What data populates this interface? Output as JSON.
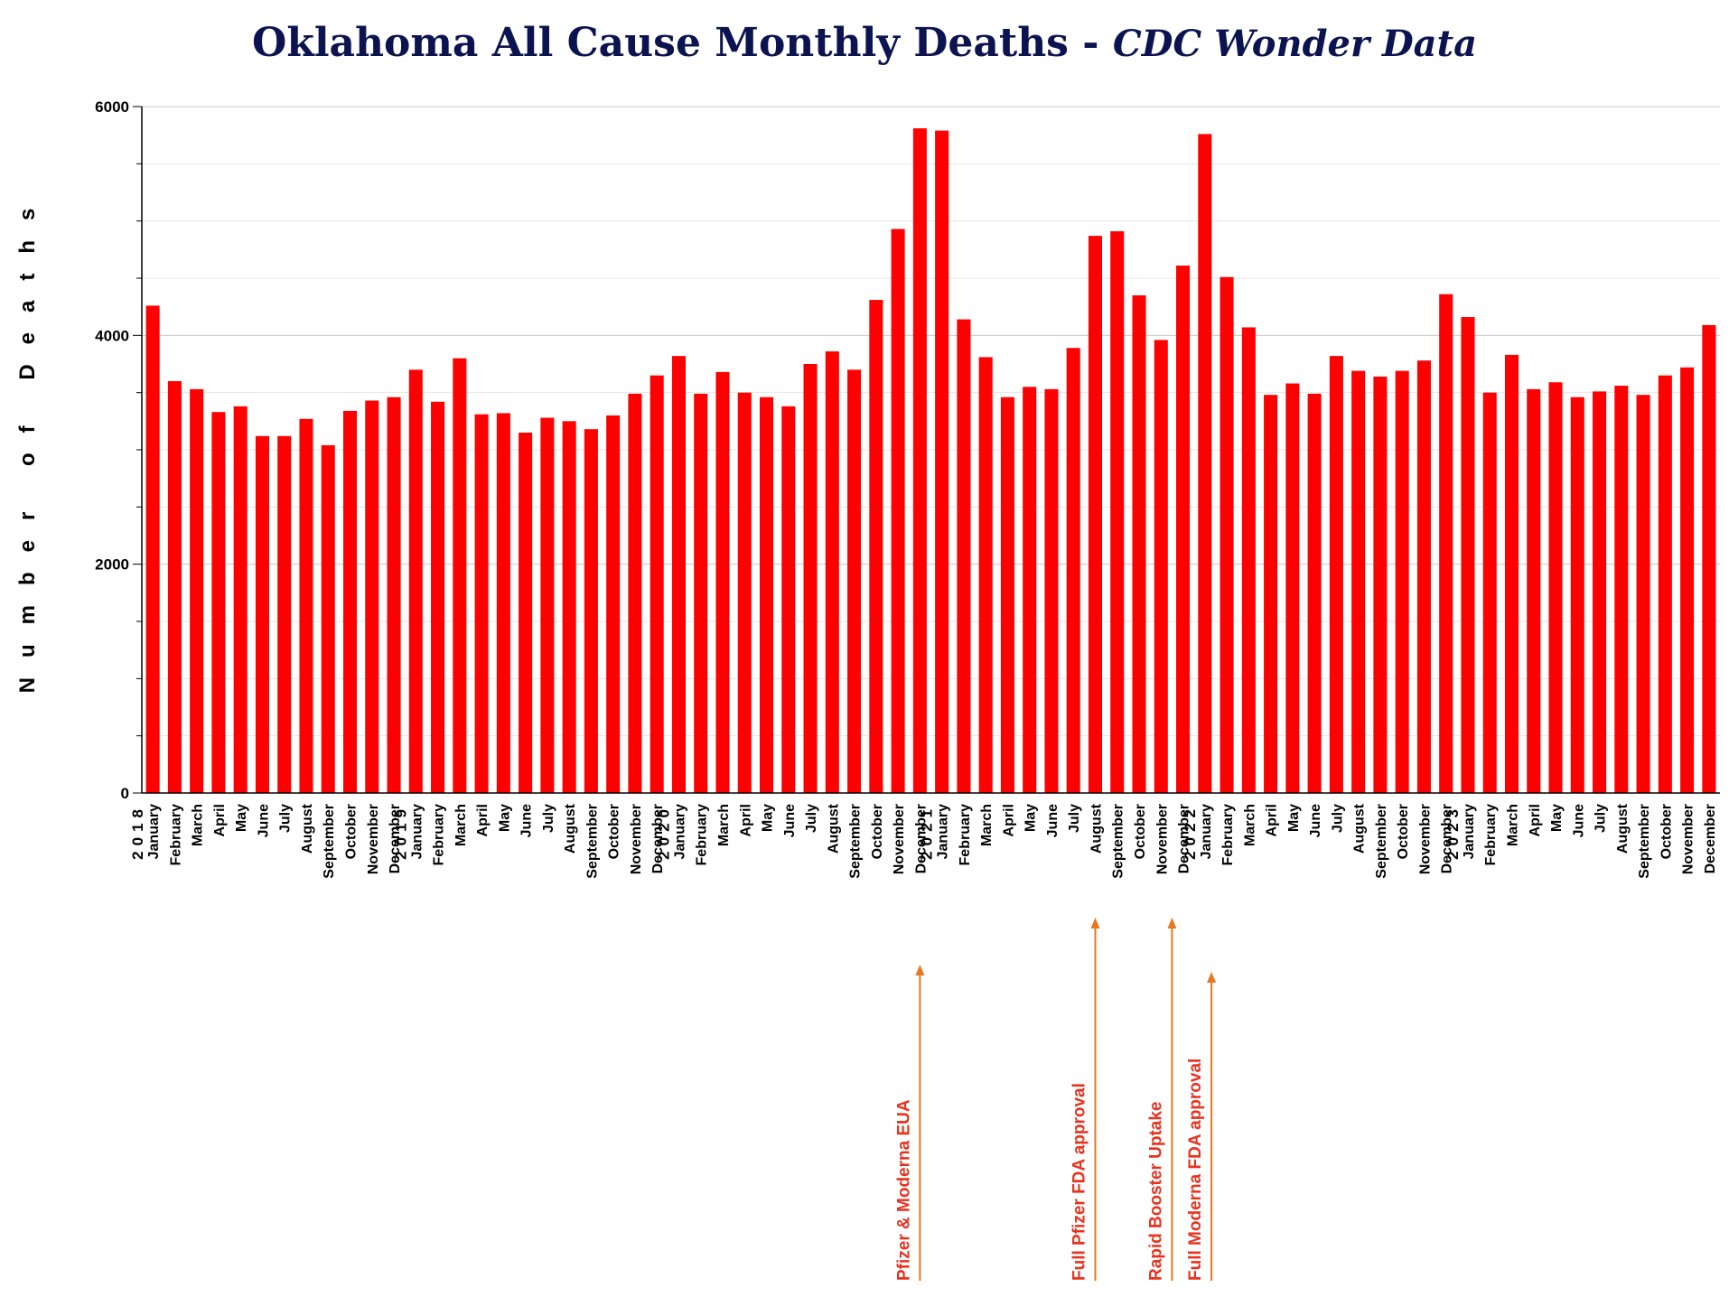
{
  "chart_data": {
    "type": "bar",
    "title": "Oklahoma All Cause Monthly Deaths - ",
    "subtitle": "CDC Wonder Data",
    "xlabel": "",
    "ylabel": "Number of Deaths",
    "ylim": [
      0,
      6000
    ],
    "yticks": [
      "0",
      "2000",
      "4000",
      "6000"
    ],
    "grid": true,
    "bar_color": "#ff0000",
    "annotation_color": "#e8321e",
    "arrow_color": "#e8771e",
    "years": [
      {
        "label": "2018",
        "start_index": 0
      },
      {
        "label": "2019",
        "start_index": 12
      },
      {
        "label": "2020",
        "start_index": 24
      },
      {
        "label": "2021",
        "start_index": 36
      },
      {
        "label": "2022",
        "start_index": 48
      },
      {
        "label": "2023",
        "start_index": 60
      }
    ],
    "categories": [
      "January",
      "February",
      "March",
      "April",
      "May",
      "June",
      "July",
      "August",
      "September",
      "October",
      "November",
      "December",
      "January",
      "February",
      "March",
      "April",
      "May",
      "June",
      "July",
      "August",
      "September",
      "October",
      "November",
      "December",
      "January",
      "February",
      "March",
      "April",
      "May",
      "June",
      "July",
      "August",
      "September",
      "October",
      "November",
      "December",
      "January",
      "February",
      "March",
      "April",
      "May",
      "June",
      "July",
      "August",
      "September",
      "October",
      "November",
      "December",
      "January",
      "February",
      "March",
      "April",
      "May",
      "June",
      "July",
      "August",
      "September",
      "October",
      "November",
      "December",
      "January",
      "February",
      "March",
      "April",
      "May",
      "June",
      "July",
      "August",
      "September",
      "October",
      "November",
      "December"
    ],
    "values": [
      4260,
      3600,
      3530,
      3330,
      3380,
      3120,
      3120,
      3270,
      3040,
      3340,
      3430,
      3460,
      3700,
      3420,
      3800,
      3310,
      3320,
      3150,
      3280,
      3250,
      3180,
      3300,
      3490,
      3650,
      3820,
      3490,
      3680,
      3500,
      3460,
      3380,
      3750,
      3860,
      3700,
      4310,
      4930,
      5810,
      5790,
      4140,
      3810,
      3460,
      3550,
      3530,
      3890,
      4870,
      4910,
      4350,
      3960,
      4610,
      5760,
      4510,
      4070,
      3480,
      3580,
      3490,
      3820,
      3690,
      3640,
      3690,
      3780,
      4360,
      4160,
      3500,
      3830,
      3530,
      3590,
      3460,
      3510,
      3560,
      3480,
      3650,
      3720,
      4090
    ],
    "annotations": [
      {
        "text": "Pfizer & Moderna EUA",
        "index": 35
      },
      {
        "text": "Full Pfizer FDA approval",
        "index": 43
      },
      {
        "text": "Rapid Booster Uptake",
        "index": 46.5
      },
      {
        "text": "Full Moderna FDA approval",
        "index": 48.3
      }
    ]
  }
}
